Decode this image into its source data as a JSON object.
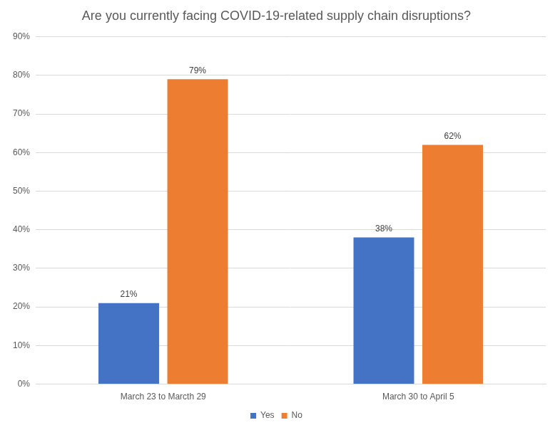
{
  "chart_data": {
    "type": "bar",
    "title": "Are you currently facing COVID-19-related supply chain disruptions?",
    "categories": [
      "March 23 to Marcth 29",
      "March 30 to April 5"
    ],
    "series": [
      {
        "name": "Yes",
        "color": "#4472c4",
        "values": [
          21,
          38
        ],
        "value_labels": [
          "21%",
          "38%"
        ]
      },
      {
        "name": "No",
        "color": "#ed7d31",
        "values": [
          79,
          62
        ],
        "value_labels": [
          "79%",
          "62%"
        ]
      }
    ],
    "ylim": [
      0,
      90
    ],
    "yticks": [
      {
        "value": 0,
        "label": "0%"
      },
      {
        "value": 10,
        "label": "10%"
      },
      {
        "value": 20,
        "label": "20%"
      },
      {
        "value": 30,
        "label": "30%"
      },
      {
        "value": 40,
        "label": "40%"
      },
      {
        "value": 50,
        "label": "50%"
      },
      {
        "value": 60,
        "label": "60%"
      },
      {
        "value": 70,
        "label": "70%"
      },
      {
        "value": 80,
        "label": "80%"
      },
      {
        "value": 90,
        "label": "90%"
      }
    ],
    "grid": true,
    "legend": "bottom",
    "data_labels": true
  }
}
